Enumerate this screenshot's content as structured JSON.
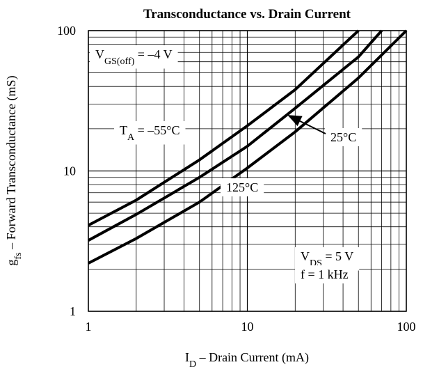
{
  "chart_data": {
    "type": "line",
    "title": "Transconductance vs. Drain Current",
    "x_label": [
      "I",
      "D",
      " – Drain Current (mA)"
    ],
    "y_label": [
      "g",
      "fs",
      " – Forward Transconductance (mS)"
    ],
    "xscale": "log",
    "yscale": "log",
    "xlim": [
      1,
      100
    ],
    "ylim": [
      1,
      100
    ],
    "xticks": [
      1,
      10,
      100
    ],
    "yticks": [
      1,
      10,
      100
    ],
    "grid": true,
    "minor_grid": true,
    "series": [
      {
        "name": "T_A = –55°C",
        "color": "#000000",
        "x": [
          1,
          2,
          5,
          10,
          20,
          50
        ],
        "values": [
          4.1,
          6.2,
          12,
          21,
          38,
          100
        ]
      },
      {
        "name": "25°C",
        "color": "#000000",
        "x": [
          1,
          2,
          5,
          10,
          20,
          50,
          70
        ],
        "values": [
          3.2,
          4.9,
          9,
          15,
          28,
          65,
          100
        ]
      },
      {
        "name": "125°C",
        "color": "#000000",
        "x": [
          1,
          2,
          5,
          10,
          20,
          50,
          100
        ],
        "values": [
          2.2,
          3.3,
          6,
          10.5,
          19,
          46,
          100
        ]
      }
    ],
    "annotations": [
      {
        "parts": [
          "V",
          "GS(off)",
          " = –4 V"
        ]
      },
      {
        "parts": [
          "T",
          "A",
          " = –55°C"
        ]
      },
      {
        "parts": [
          "25°C"
        ]
      },
      {
        "parts": [
          "125°C"
        ]
      },
      {
        "parts": [
          "V",
          "DS",
          " = 5 V"
        ]
      },
      {
        "parts": [
          "f = 1 kHz"
        ]
      }
    ]
  }
}
